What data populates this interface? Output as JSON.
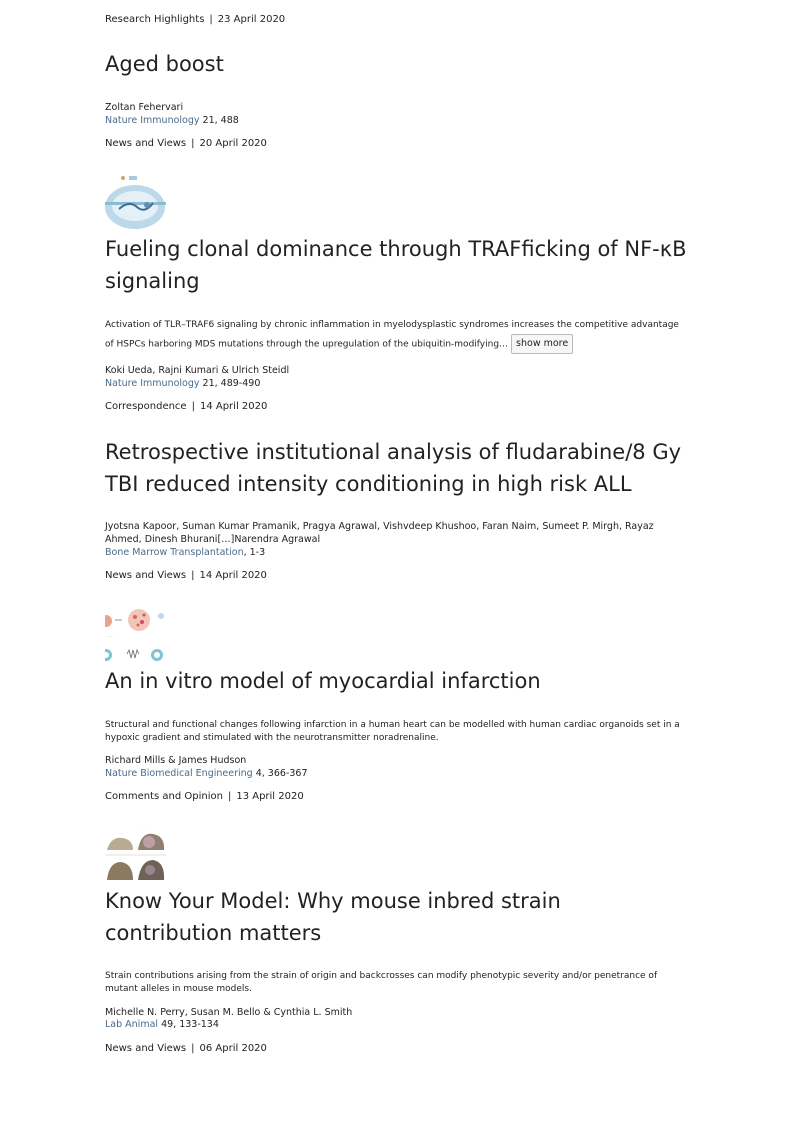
{
  "articles": [
    {
      "type": "Research Highlights",
      "date": "23 April 2020",
      "title": "Aged boost",
      "authors": "Zoltan Fehervari",
      "journal": "Nature Immunology",
      "citation": "21, 488"
    },
    {
      "type": "News and Views",
      "date": "20 April 2020",
      "title": "Fueling clonal dominance through TRAFficking of NF-κB signaling",
      "summary": "Activation of TLR–TRAF6 signaling by chronic inflammation in myelodysplastic syndromes increases the competitive advantage of HSPCs harboring MDS mutations through the upregulation of the ubiquitin-modifying…",
      "show_more": "show more",
      "authors": "Koki Ueda, Rajni Kumari & Ulrich Steidl",
      "journal": "Nature Immunology",
      "citation": "21, 489-490"
    },
    {
      "type": "Correspondence",
      "date": "14 April 2020",
      "title": "Retrospective institutional analysis of fludarabine/8 Gy TBI reduced intensity conditioning in high risk ALL",
      "authors": "Jyotsna Kapoor, Suman Kumar Pramanik, Pragya Agrawal, Vishvdeep Khushoo, Faran Naim, Sumeet P. Mirgh, Rayaz Ahmed, Dinesh Bhurani[…]Narendra Agrawal",
      "journal": "Bone Marrow Transplantation",
      "citation": ", 1-3"
    },
    {
      "type": "News and Views",
      "date": "14 April 2020",
      "title": "An in vitro model of myocardial infarction",
      "summary": "Structural and functional changes following infarction in a human heart can be modelled with human cardiac organoids set in a hypoxic gradient and stimulated with the neurotransmitter noradrenaline.",
      "authors": "Richard Mills & James Hudson",
      "journal": "Nature Biomedical Engineering",
      "citation": "4, 366-367"
    },
    {
      "type": "Comments and Opinion",
      "date": "13 April 2020",
      "title": "Know Your Model: Why mouse inbred strain contribution matters",
      "summary": "Strain contributions arising from the strain of origin and backcrosses can modify phenotypic severity and/or penetrance of mutant alleles in mouse models.",
      "authors": "Michelle N. Perry, Susan M. Bello & Cynthia L. Smith",
      "journal": "Lab Animal",
      "citation": "49, 133-134"
    },
    {
      "type": "News and Views",
      "date": "06 April 2020"
    }
  ],
  "separator": "|",
  "colors": {
    "text": "#222222",
    "journal_link": "#4a6b8a",
    "button_bg": "#f7f7f7",
    "button_border": "#b9b9b9"
  }
}
